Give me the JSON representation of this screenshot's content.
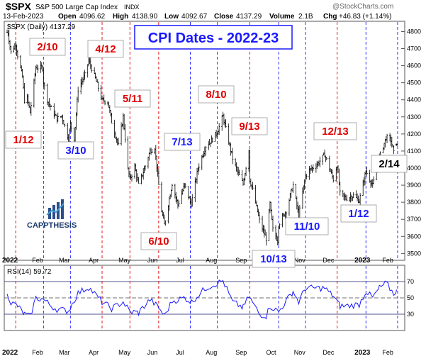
{
  "header": {
    "symbol": "$SPX",
    "name": "S&P 500 Large Cap Index",
    "exchange": "INDX",
    "date": "13-Feb-2023",
    "open_label": "Open",
    "open": "4096.62",
    "high_label": "High",
    "high": "4138.90",
    "low_label": "Low",
    "low": "4092.67",
    "close_label": "Close",
    "close": "4137.29",
    "volume_label": "Volume",
    "volume": "2.1B",
    "chg_label": "Chg",
    "chg": "+46.83 (+1.14%)",
    "watermark": "@StockCharts.com"
  },
  "price_legend": "$SPX (Daily) 4137.29",
  "rsi_legend": "RSI(14) 59.72",
  "title": "CPI Dates - 2022-23",
  "logo": {
    "text": "CAPPTHESIS"
  },
  "colors": {
    "red": "#e00000",
    "blue": "#1a1aff",
    "title_blue": "#1a1aff",
    "line": "#1a1aff",
    "candle": "#000000"
  },
  "chart_data": [
    {
      "type": "line",
      "title": "$SPX (Daily) 4137.29",
      "x_axis": [
        "2022",
        "Feb",
        "Mar",
        "Apr",
        "May",
        "Jun",
        "Jul",
        "Aug",
        "Sep",
        "Oct",
        "Nov",
        "Dec",
        "2023",
        "Feb"
      ],
      "y_ticks": [
        3500,
        3600,
        3700,
        3800,
        3900,
        4000,
        4100,
        4200,
        4300,
        4400,
        4500,
        4600,
        4700,
        4800
      ],
      "ylim": [
        3460,
        4860
      ],
      "series": [
        {
          "values": [
            [
              "2022-01-03",
              4796
            ],
            [
              "2022-01-04",
              4793
            ],
            [
              "2022-01-07",
              4677
            ],
            [
              "2022-01-12",
              4726
            ],
            [
              "2022-01-14",
              4662
            ],
            [
              "2022-01-19",
              4532
            ],
            [
              "2022-01-21",
              4397
            ],
            [
              "2022-01-24",
              4410
            ],
            [
              "2022-01-27",
              4326
            ],
            [
              "2022-02-02",
              4589
            ],
            [
              "2022-02-09",
              4587
            ],
            [
              "2022-02-10",
              4504
            ],
            [
              "2022-02-14",
              4401
            ],
            [
              "2022-02-18",
              4348
            ],
            [
              "2022-02-24",
              4288
            ],
            [
              "2022-03-01",
              4306
            ],
            [
              "2022-03-08",
              4170
            ],
            [
              "2022-03-10",
              4260
            ],
            [
              "2022-03-14",
              4173
            ],
            [
              "2022-03-18",
              4463
            ],
            [
              "2022-03-25",
              4543
            ],
            [
              "2022-03-29",
              4631
            ],
            [
              "2022-04-05",
              4525
            ],
            [
              "2022-04-12",
              4397
            ],
            [
              "2022-04-18",
              4391
            ],
            [
              "2022-04-22",
              4271
            ],
            [
              "2022-04-29",
              4132
            ],
            [
              "2022-05-04",
              4300
            ],
            [
              "2022-05-09",
              3991
            ],
            [
              "2022-05-11",
              3935
            ],
            [
              "2022-05-16",
              4008
            ],
            [
              "2022-05-20",
              3901
            ],
            [
              "2022-05-25",
              3978
            ],
            [
              "2022-06-01",
              4101
            ],
            [
              "2022-06-06",
              4121
            ],
            [
              "2022-06-10",
              3900
            ],
            [
              "2022-06-13",
              3749
            ],
            [
              "2022-06-16",
              3667
            ],
            [
              "2022-06-24",
              3911
            ],
            [
              "2022-06-30",
              3785
            ],
            [
              "2022-07-07",
              3902
            ],
            [
              "2022-07-13",
              3801
            ],
            [
              "2022-07-14",
              3791
            ],
            [
              "2022-07-21",
              3999
            ],
            [
              "2022-07-29",
              4130
            ],
            [
              "2022-08-03",
              4155
            ],
            [
              "2022-08-10",
              4210
            ],
            [
              "2022-08-16",
              4305
            ],
            [
              "2022-08-19",
              4228
            ],
            [
              "2022-08-26",
              4057
            ],
            [
              "2022-09-01",
              3966
            ],
            [
              "2022-09-06",
              3908
            ],
            [
              "2022-09-12",
              4110
            ],
            [
              "2022-09-13",
              3932
            ],
            [
              "2022-09-16",
              3873
            ],
            [
              "2022-09-23",
              3693
            ],
            [
              "2022-09-30",
              3586
            ],
            [
              "2022-10-04",
              3791
            ],
            [
              "2022-10-07",
              3640
            ],
            [
              "2022-10-12",
              3577
            ],
            [
              "2022-10-13",
              3669
            ],
            [
              "2022-10-21",
              3752
            ],
            [
              "2022-10-28",
              3901
            ],
            [
              "2022-11-03",
              3720
            ],
            [
              "2022-11-10",
              3956
            ],
            [
              "2022-11-15",
              3991
            ],
            [
              "2022-11-23",
              4027
            ],
            [
              "2022-11-30",
              4080
            ],
            [
              "2022-12-05",
              3998
            ],
            [
              "2022-12-09",
              3934
            ],
            [
              "2022-12-13",
              4019
            ],
            [
              "2022-12-16",
              3852
            ],
            [
              "2022-12-22",
              3822
            ],
            [
              "2022-12-30",
              3839
            ],
            [
              "2023-01-05",
              3808
            ],
            [
              "2023-01-12",
              3983
            ],
            [
              "2023-01-19",
              3898
            ],
            [
              "2023-01-26",
              4060
            ],
            [
              "2023-02-02",
              4179
            ],
            [
              "2023-02-07",
              4164
            ],
            [
              "2023-02-10",
              4090
            ],
            [
              "2023-02-13",
              4137
            ]
          ]
        }
      ]
    },
    {
      "type": "line",
      "title": "RSI(14) 59.72",
      "y_ticks": [
        30,
        50,
        70
      ],
      "ylim": [
        10,
        90
      ],
      "series": [
        {
          "values": [
            [
              "2022-01-03",
              58
            ],
            [
              "2022-01-07",
              44
            ],
            [
              "2022-01-14",
              40
            ],
            [
              "2022-01-21",
              30
            ],
            [
              "2022-01-27",
              27
            ],
            [
              "2022-02-02",
              50
            ],
            [
              "2022-02-10",
              48
            ],
            [
              "2022-02-18",
              40
            ],
            [
              "2022-02-24",
              36
            ],
            [
              "2022-03-08",
              34
            ],
            [
              "2022-03-18",
              56
            ],
            [
              "2022-03-29",
              63
            ],
            [
              "2022-04-12",
              45
            ],
            [
              "2022-04-22",
              37
            ],
            [
              "2022-05-04",
              45
            ],
            [
              "2022-05-11",
              33
            ],
            [
              "2022-05-20",
              32
            ],
            [
              "2022-06-01",
              48
            ],
            [
              "2022-06-10",
              38
            ],
            [
              "2022-06-16",
              28
            ],
            [
              "2022-06-24",
              46
            ],
            [
              "2022-07-07",
              50
            ],
            [
              "2022-07-14",
              45
            ],
            [
              "2022-07-29",
              62
            ],
            [
              "2022-08-16",
              71
            ],
            [
              "2022-08-26",
              45
            ],
            [
              "2022-09-06",
              38
            ],
            [
              "2022-09-12",
              52
            ],
            [
              "2022-09-23",
              30
            ],
            [
              "2022-09-30",
              28
            ],
            [
              "2022-10-04",
              40
            ],
            [
              "2022-10-13",
              33
            ],
            [
              "2022-10-28",
              58
            ],
            [
              "2022-11-03",
              45
            ],
            [
              "2022-11-10",
              62
            ],
            [
              "2022-11-30",
              62
            ],
            [
              "2022-12-09",
              52
            ],
            [
              "2022-12-16",
              40
            ],
            [
              "2022-12-22",
              40
            ],
            [
              "2023-01-05",
              42
            ],
            [
              "2023-01-12",
              58
            ],
            [
              "2023-01-19",
              50
            ],
            [
              "2023-01-26",
              62
            ],
            [
              "2023-02-02",
              68
            ],
            [
              "2023-02-10",
              55
            ],
            [
              "2023-02-13",
              60
            ]
          ]
        }
      ]
    }
  ],
  "cpi_dates": [
    {
      "date": "2022-01-12",
      "label": "1/12",
      "color": "red",
      "place": "below"
    },
    {
      "date": "2022-02-10",
      "label": "2/10",
      "color": "red",
      "place": "above"
    },
    {
      "date": "2022-03-10",
      "label": "3/10",
      "color": "blue",
      "place": "below"
    },
    {
      "date": "2022-04-12",
      "label": "4/12",
      "color": "red",
      "place": "above"
    },
    {
      "date": "2022-05-11",
      "label": "5/11",
      "color": "red",
      "place": "above"
    },
    {
      "date": "2022-06-10",
      "label": "6/10",
      "color": "red",
      "place": "below"
    },
    {
      "date": "2022-07-13",
      "label": "7/13",
      "color": "blue",
      "place": "above"
    },
    {
      "date": "2022-08-10",
      "label": "8/10",
      "color": "red",
      "place": "above"
    },
    {
      "date": "2022-09-13",
      "label": "9/13",
      "color": "red",
      "place": "above"
    },
    {
      "date": "2022-10-13",
      "label": "10/13",
      "color": "blue",
      "place": "below"
    },
    {
      "date": "2022-11-10",
      "label": "11/10",
      "color": "blue",
      "place": "below"
    },
    {
      "date": "2022-12-13",
      "label": "12/13",
      "color": "red",
      "place": "above"
    },
    {
      "date": "2023-01-12",
      "label": "1/12",
      "color": "blue",
      "place": "below"
    },
    {
      "date": "2023-02-14",
      "label": "2/14",
      "color": "black",
      "place": "right"
    }
  ]
}
